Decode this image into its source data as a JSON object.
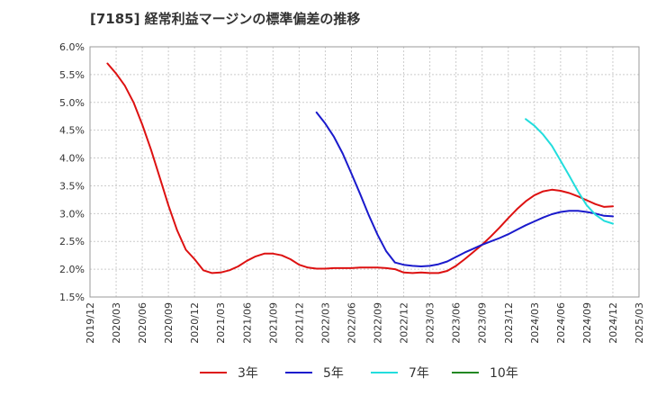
{
  "chart_data": {
    "type": "line",
    "title": "[7185]  経常利益マージンの標準偏差の推移",
    "xlabel": "",
    "ylabel": "",
    "ylim": [
      1.5,
      6.0
    ],
    "y_ticks": [
      "6.0%",
      "5.5%",
      "5.0%",
      "4.5%",
      "4.0%",
      "3.5%",
      "3.0%",
      "2.5%",
      "2.0%",
      "1.5%"
    ],
    "x_ticks": [
      "2019/12",
      "2020/03",
      "2020/06",
      "2020/09",
      "2020/12",
      "2021/03",
      "2021/06",
      "2021/09",
      "2021/12",
      "2022/03",
      "2022/06",
      "2022/09",
      "2022/12",
      "2023/03",
      "2023/06",
      "2023/09",
      "2023/12",
      "2024/03",
      "2024/06",
      "2024/09",
      "2024/12",
      "2025/03"
    ],
    "grid": true,
    "legend_position": "bottom",
    "series": [
      {
        "name": "3年",
        "color": "#dd1111",
        "x": [
          "2020/02",
          "2020/03",
          "2020/04",
          "2020/05",
          "2020/06",
          "2020/07",
          "2020/08",
          "2020/09",
          "2020/10",
          "2020/11",
          "2020/12",
          "2021/01",
          "2021/02",
          "2021/03",
          "2021/04",
          "2021/05",
          "2021/06",
          "2021/07",
          "2021/08",
          "2021/09",
          "2021/10",
          "2021/11",
          "2021/12",
          "2022/01",
          "2022/02",
          "2022/03",
          "2022/04",
          "2022/05",
          "2022/06",
          "2022/07",
          "2022/08",
          "2022/09",
          "2022/10",
          "2022/11",
          "2022/12",
          "2023/01",
          "2023/02",
          "2023/03",
          "2023/04",
          "2023/05",
          "2023/06",
          "2023/07",
          "2023/08",
          "2023/09",
          "2023/10",
          "2023/11",
          "2023/12",
          "2024/01",
          "2024/02",
          "2024/03",
          "2024/04",
          "2024/05",
          "2024/06",
          "2024/07",
          "2024/08",
          "2024/09",
          "2024/10",
          "2024/11",
          "2024/12"
        ],
        "values": [
          5.7,
          5.52,
          5.3,
          5.0,
          4.6,
          4.15,
          3.65,
          3.15,
          2.7,
          2.35,
          2.18,
          1.98,
          1.93,
          1.94,
          1.98,
          2.05,
          2.15,
          2.23,
          2.28,
          2.28,
          2.25,
          2.18,
          2.08,
          2.03,
          2.01,
          2.01,
          2.02,
          2.02,
          2.02,
          2.03,
          2.03,
          2.03,
          2.02,
          2.0,
          1.94,
          1.93,
          1.94,
          1.93,
          1.93,
          1.97,
          2.06,
          2.18,
          2.31,
          2.44,
          2.59,
          2.75,
          2.92,
          3.08,
          3.22,
          3.33,
          3.4,
          3.43,
          3.41,
          3.37,
          3.31,
          3.24,
          3.17,
          3.12,
          3.13
        ]
      },
      {
        "name": "5年",
        "color": "#1a1acc",
        "x": [
          "2022/02",
          "2022/03",
          "2022/04",
          "2022/05",
          "2022/06",
          "2022/07",
          "2022/08",
          "2022/09",
          "2022/10",
          "2022/11",
          "2022/12",
          "2023/01",
          "2023/02",
          "2023/03",
          "2023/04",
          "2023/05",
          "2023/06",
          "2023/07",
          "2023/08",
          "2023/09",
          "2023/10",
          "2023/11",
          "2023/12",
          "2024/01",
          "2024/02",
          "2024/03",
          "2024/04",
          "2024/05",
          "2024/06",
          "2024/07",
          "2024/08",
          "2024/09",
          "2024/10",
          "2024/11",
          "2024/12"
        ],
        "values": [
          4.82,
          4.62,
          4.38,
          4.08,
          3.72,
          3.35,
          2.97,
          2.62,
          2.32,
          2.12,
          2.08,
          2.06,
          2.05,
          2.06,
          2.09,
          2.14,
          2.22,
          2.3,
          2.37,
          2.44,
          2.5,
          2.56,
          2.63,
          2.71,
          2.79,
          2.86,
          2.93,
          2.99,
          3.03,
          3.05,
          3.05,
          3.03,
          3.0,
          2.96,
          2.95
        ]
      },
      {
        "name": "7年",
        "color": "#22dddd",
        "x": [
          "2024/02",
          "2024/03",
          "2024/04",
          "2024/05",
          "2024/06",
          "2024/07",
          "2024/08",
          "2024/09",
          "2024/10",
          "2024/11",
          "2024/12"
        ],
        "values": [
          4.7,
          4.58,
          4.42,
          4.22,
          3.95,
          3.68,
          3.4,
          3.15,
          2.98,
          2.87,
          2.82
        ]
      },
      {
        "name": "10年",
        "color": "#228822",
        "x": [],
        "values": []
      }
    ]
  }
}
